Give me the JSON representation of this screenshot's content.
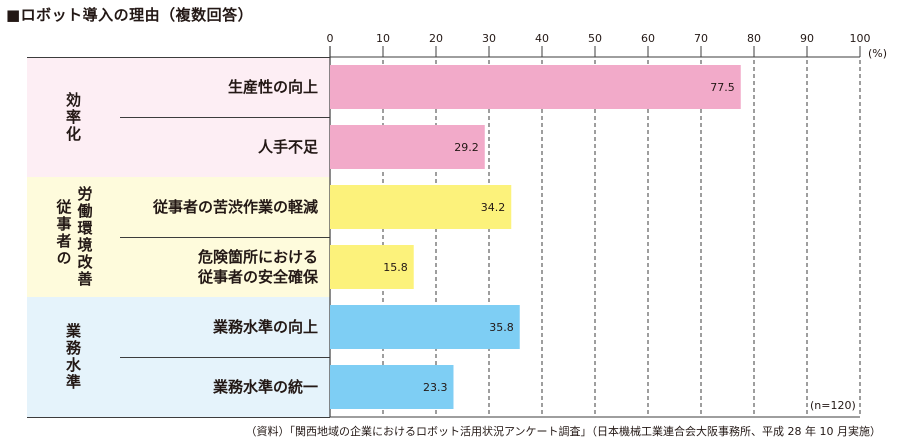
{
  "header": {
    "title": "■ロボット導入の理由（複数回答）"
  },
  "chart_data": {
    "type": "bar",
    "orientation": "horizontal",
    "xlim": [
      0,
      100
    ],
    "ticks": [
      "0",
      "10",
      "20",
      "30",
      "40",
      "50",
      "60",
      "70",
      "80",
      "90",
      "100"
    ],
    "unit_label": "(%)",
    "sample_label": "(n=120)",
    "grid": true,
    "groups": [
      {
        "name": "効率化",
        "color": "#fdeef4",
        "items": [
          {
            "label": "生産性の向上",
            "value": 77.5,
            "value_label": "77.5",
            "color": "#f2aac9"
          },
          {
            "label": "人手不足",
            "value": 29.2,
            "value_label": "29.2",
            "color": "#f2aac9"
          }
        ]
      },
      {
        "name": "労働環境改善",
        "subname": "従事者の",
        "color": "#fefbdc",
        "items": [
          {
            "label": "従事者の苦渋作業の軽減",
            "value": 34.2,
            "value_label": "34.2",
            "color": "#fcf27b"
          },
          {
            "label": "危険箇所における\n従事者の安全確保",
            "value": 15.8,
            "value_label": "15.8",
            "color": "#fcf27b"
          }
        ]
      },
      {
        "name": "業務水準",
        "color": "#e5f3fb",
        "items": [
          {
            "label": "業務水準の向上",
            "value": 35.8,
            "value_label": "35.8",
            "color": "#7ecef4"
          },
          {
            "label": "業務水準の統一",
            "value": 23.3,
            "value_label": "23.3",
            "color": "#7ecef4"
          }
        ]
      }
    ]
  },
  "footer": {
    "source": "（資料）「関西地域の企業におけるロボット活用状況アンケート調査」（日本機械工業連合会大阪事務所、平成 28 年 10 月実施）"
  }
}
